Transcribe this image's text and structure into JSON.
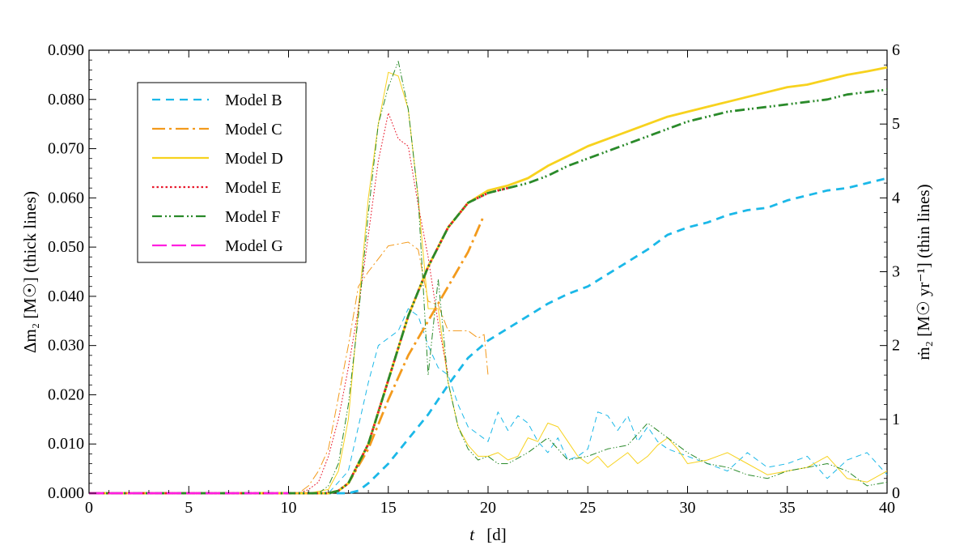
{
  "chart_data": {
    "type": "line",
    "xlabel_var": "t",
    "xlabel_unit": "[d]",
    "ylabel_left": "Δm₂  [M☉]  (thick lines)",
    "ylabel_right": "ṁ₂  [M☉ yr⁻¹]  (thin lines)",
    "xlim": [
      0,
      40
    ],
    "ylim_left": [
      0,
      0.09
    ],
    "ylim_right": [
      0,
      6
    ],
    "x_ticks": [
      "0",
      "5",
      "10",
      "15",
      "20",
      "25",
      "30",
      "35",
      "40"
    ],
    "y_left_ticks": [
      "0.000",
      "0.010",
      "0.020",
      "0.030",
      "0.040",
      "0.050",
      "0.060",
      "0.070",
      "0.080",
      "0.090"
    ],
    "y_right_ticks": [
      "0",
      "1",
      "2",
      "3",
      "4",
      "5",
      "6"
    ],
    "grid": false,
    "legend_position": "top-left",
    "series": [
      {
        "name": "Model B",
        "color": "#1bb8e8",
        "dash": "10,7",
        "mass_x": [
          0,
          13.0,
          13.5,
          14.0,
          15.0,
          16.0,
          17.0,
          18.0,
          19.0,
          20.0,
          21.0,
          22.0,
          23.0,
          24.0,
          25.0,
          26.0,
          27.0,
          28.0,
          29.0,
          30.0,
          31.0,
          32.0,
          33.0,
          34.0,
          35.0,
          36.0,
          37.0,
          38.0,
          39.0,
          40.0
        ],
        "mass_y": [
          0,
          0.0,
          0.0005,
          0.002,
          0.006,
          0.011,
          0.016,
          0.022,
          0.0275,
          0.031,
          0.0335,
          0.036,
          0.0385,
          0.0405,
          0.042,
          0.0445,
          0.047,
          0.0495,
          0.0525,
          0.054,
          0.055,
          0.0565,
          0.0575,
          0.058,
          0.0595,
          0.0605,
          0.0615,
          0.062,
          0.063,
          0.064
        ],
        "rate_x": [
          0,
          12.0,
          13.0,
          14.0,
          14.5,
          15.0,
          15.5,
          16.0,
          16.5,
          17.0,
          17.5,
          18.0,
          18.5,
          19.0,
          19.5,
          20.0,
          20.5,
          21.0,
          21.5,
          22.0,
          22.5,
          23.0,
          23.5,
          24.0,
          24.5,
          25.0,
          25.5,
          26.0,
          26.5,
          27.0,
          27.5,
          28.0,
          28.5,
          29.0,
          29.5,
          30.0,
          31.0,
          32.0,
          33.0,
          34.0,
          35.0,
          36.0,
          37.0,
          38.0,
          39.0,
          40.0
        ],
        "rate_y": [
          0,
          0.0,
          0.3,
          1.5,
          2.0,
          2.1,
          2.2,
          2.5,
          2.4,
          2.0,
          1.7,
          1.6,
          1.2,
          0.9,
          0.8,
          0.7,
          1.1,
          0.85,
          1.05,
          0.95,
          0.7,
          0.55,
          0.75,
          0.45,
          0.5,
          0.6,
          1.1,
          1.05,
          0.85,
          1.05,
          0.7,
          0.9,
          0.7,
          0.6,
          0.55,
          0.5,
          0.4,
          0.3,
          0.55,
          0.35,
          0.4,
          0.5,
          0.2,
          0.45,
          0.55,
          0.25
        ]
      },
      {
        "name": "Model C",
        "color": "#f39a1c",
        "dash": "16,5,3,5",
        "mass_x": [
          0,
          12.0,
          12.5,
          13.0,
          14.0,
          15.0,
          16.0,
          17.0,
          18.0,
          19.0,
          19.8
        ],
        "mass_y": [
          0,
          0.0,
          0.0005,
          0.002,
          0.009,
          0.019,
          0.028,
          0.035,
          0.042,
          0.049,
          0.0565
        ],
        "rate_x": [
          0,
          10.5,
          11.0,
          11.5,
          12.0,
          12.5,
          13.0,
          13.5,
          14.0,
          15.0,
          16.0,
          16.5,
          17.0,
          17.5,
          18.0,
          18.5,
          19.0,
          19.5,
          19.8,
          20.0
        ],
        "rate_y": [
          0,
          0.0,
          0.1,
          0.3,
          0.6,
          1.3,
          2.0,
          2.8,
          3.0,
          3.35,
          3.4,
          3.3,
          2.6,
          2.55,
          2.2,
          2.2,
          2.2,
          2.1,
          2.15,
          1.6
        ]
      },
      {
        "name": "Model D",
        "color": "#f7d21e",
        "dash": "",
        "mass_x": [
          0,
          12.0,
          12.5,
          13.0,
          14.0,
          15.0,
          16.0,
          17.0,
          18.0,
          19.0,
          20.0,
          21.0,
          22.0,
          23.0,
          24.0,
          25.0,
          26.0,
          27.0,
          28.0,
          29.0,
          30.0,
          31.0,
          32.0,
          33.0,
          34.0,
          35.0,
          36.0,
          37.0,
          38.0,
          39.0,
          40.0
        ],
        "mass_y": [
          0,
          0.0,
          0.0005,
          0.002,
          0.01,
          0.023,
          0.036,
          0.046,
          0.054,
          0.059,
          0.0615,
          0.0625,
          0.064,
          0.0665,
          0.0685,
          0.0705,
          0.072,
          0.0735,
          0.075,
          0.0765,
          0.0775,
          0.0785,
          0.0795,
          0.0805,
          0.0815,
          0.0825,
          0.083,
          0.084,
          0.085,
          0.0857,
          0.0865
        ],
        "rate_x": [
          0,
          11.0,
          12.0,
          12.5,
          13.0,
          13.5,
          14.0,
          14.5,
          15.0,
          15.5,
          16.0,
          16.5,
          17.0,
          17.5,
          18.0,
          18.5,
          19.0,
          19.5,
          20.0,
          20.5,
          21.0,
          21.5,
          22.0,
          22.5,
          23.0,
          23.5,
          24.0,
          24.5,
          25.0,
          25.5,
          26.0,
          26.5,
          27.0,
          27.5,
          28.0,
          28.5,
          29.0,
          29.5,
          30.0,
          31.0,
          32.0,
          33.0,
          34.0,
          35.0,
          36.0,
          37.0,
          38.0,
          39.0,
          40.0
        ],
        "rate_y": [
          0,
          0.0,
          0.05,
          0.3,
          1.0,
          2.5,
          4.0,
          5.0,
          5.7,
          5.65,
          5.2,
          4.0,
          2.5,
          2.5,
          1.5,
          0.9,
          0.65,
          0.5,
          0.5,
          0.55,
          0.45,
          0.5,
          0.75,
          0.7,
          0.95,
          0.9,
          0.7,
          0.5,
          0.4,
          0.5,
          0.35,
          0.45,
          0.55,
          0.4,
          0.5,
          0.65,
          0.75,
          0.6,
          0.4,
          0.45,
          0.55,
          0.4,
          0.25,
          0.3,
          0.35,
          0.5,
          0.2,
          0.15,
          0.3
        ]
      },
      {
        "name": "Model E",
        "color": "#e8192c",
        "dash": "2.5,3",
        "mass_x": [
          0,
          12.0,
          12.5,
          13.0,
          14.0,
          15.0,
          16.0,
          17.0,
          18.0,
          19.0,
          20.0,
          21.0
        ],
        "mass_y": [
          0,
          0.0,
          0.0005,
          0.002,
          0.01,
          0.023,
          0.036,
          0.046,
          0.054,
          0.059,
          0.061,
          0.062
        ],
        "rate_x": [
          0,
          10.5,
          11.0,
          11.5,
          12.0,
          12.5,
          13.0,
          13.5,
          14.0,
          14.5,
          15.0,
          15.5,
          16.0,
          16.5,
          17.0,
          17.5,
          18.0
        ],
        "rate_y": [
          0,
          0.0,
          0.05,
          0.15,
          0.5,
          1.0,
          1.7,
          2.5,
          3.5,
          4.5,
          5.15,
          4.8,
          4.7,
          3.9,
          3.2,
          2.3,
          1.6
        ]
      },
      {
        "name": "Model F",
        "color": "#2a8a2a",
        "dash": "12,4,2,3,2,4",
        "mass_x": [
          0,
          12.0,
          12.5,
          13.0,
          14.0,
          15.0,
          16.0,
          17.0,
          18.0,
          19.0,
          20.0,
          21.0,
          22.0,
          23.0,
          24.0,
          25.0,
          26.0,
          27.0,
          28.0,
          29.0,
          30.0,
          31.0,
          32.0,
          33.0,
          34.0,
          35.0,
          36.0,
          37.0,
          38.0,
          39.0,
          40.0
        ],
        "mass_y": [
          0,
          0.0,
          0.0005,
          0.002,
          0.01,
          0.023,
          0.036,
          0.046,
          0.054,
          0.059,
          0.061,
          0.062,
          0.063,
          0.0645,
          0.0665,
          0.068,
          0.0695,
          0.071,
          0.0725,
          0.074,
          0.0755,
          0.0765,
          0.0775,
          0.078,
          0.0785,
          0.079,
          0.0795,
          0.08,
          0.081,
          0.0815,
          0.082
        ],
        "rate_x": [
          0,
          11.5,
          12.0,
          12.5,
          13.0,
          13.5,
          14.0,
          14.5,
          15.0,
          15.5,
          16.0,
          16.5,
          17.0,
          17.5,
          18.0,
          18.5,
          19.0,
          19.5,
          20.0,
          20.5,
          21.0,
          22.0,
          23.0,
          24.0,
          25.0,
          26.0,
          27.0,
          28.0,
          29.0,
          30.0,
          31.0,
          32.0,
          33.0,
          34.0,
          35.0,
          36.0,
          37.0,
          38.0,
          39.0,
          40.0
        ],
        "rate_y": [
          0,
          0.0,
          0.1,
          0.4,
          1.2,
          2.4,
          3.8,
          5.0,
          5.5,
          5.85,
          5.2,
          4.0,
          1.6,
          2.9,
          1.5,
          0.9,
          0.6,
          0.45,
          0.5,
          0.4,
          0.4,
          0.55,
          0.75,
          0.45,
          0.5,
          0.6,
          0.65,
          0.95,
          0.75,
          0.55,
          0.4,
          0.35,
          0.25,
          0.2,
          0.3,
          0.35,
          0.4,
          0.3,
          0.1,
          0.15
        ]
      },
      {
        "name": "Model G",
        "color": "#ff1fe0",
        "dash": "18,6",
        "mass_x": [
          0,
          10.0
        ],
        "mass_y": [
          0,
          0
        ],
        "rate_x": [
          0,
          10.0
        ],
        "rate_y": [
          0,
          0
        ]
      }
    ]
  }
}
